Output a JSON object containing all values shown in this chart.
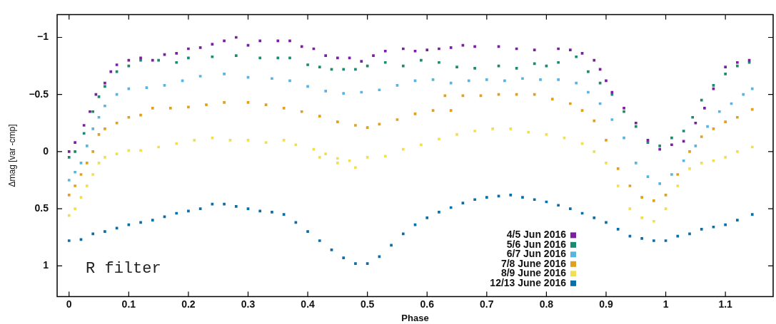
{
  "chart_data": {
    "type": "scatter",
    "xlabel": "Phase",
    "ylabel": "Δmag [var -cmp]",
    "xlim": [
      -0.02,
      1.18
    ],
    "ylim": [
      1.27,
      -1.2
    ],
    "xticks": [
      0,
      0.1,
      0.2,
      0.3,
      0.4,
      0.5,
      0.6,
      0.7,
      0.8,
      0.9,
      1,
      1.1
    ],
    "yticks": [
      -1,
      -0.5,
      0,
      0.5,
      1
    ],
    "marker": "square",
    "legend": "bottom right",
    "annotations": [
      "R filter"
    ],
    "series": [
      {
        "name": "4/5 Jun 2016",
        "color": "#7b1fa2",
        "x": [
          0,
          0.01,
          0.025,
          0.035,
          0.045,
          0.06,
          0.07,
          0.08,
          0.1,
          0.12,
          0.14,
          0.16,
          0.18,
          0.2,
          0.22,
          0.24,
          0.26,
          0.28,
          0.3,
          0.32,
          0.35,
          0.37,
          0.39,
          0.41,
          0.43,
          0.45,
          0.47,
          0.49,
          0.51,
          0.53,
          0.56,
          0.58,
          0.6,
          0.62,
          0.64,
          0.66,
          0.68,
          0.72,
          0.75,
          0.78,
          0.82,
          0.84,
          0.86,
          0.88,
          0.89,
          0.9,
          0.91,
          0.93,
          0.95,
          0.97,
          0.99,
          1.01,
          1.03,
          1.05,
          1.065,
          1.08,
          1.1,
          1.12,
          1.14
        ],
        "values": [
          0,
          -0.08,
          -0.23,
          -0.35,
          -0.5,
          -0.6,
          -0.7,
          -0.76,
          -0.8,
          -0.82,
          -0.8,
          -0.85,
          -0.86,
          -0.9,
          -0.91,
          -0.94,
          -0.97,
          -1,
          -0.93,
          -0.97,
          -0.97,
          -0.97,
          -0.92,
          -0.9,
          -0.84,
          -0.82,
          -0.82,
          -0.79,
          -0.84,
          -0.88,
          -0.9,
          -0.88,
          -0.89,
          -0.9,
          -0.91,
          -0.93,
          -0.92,
          -0.92,
          -0.9,
          -0.89,
          -0.9,
          -0.89,
          -0.86,
          -0.8,
          -0.72,
          -0.62,
          -0.52,
          -0.38,
          -0.25,
          -0.1,
          -0.02,
          -0.06,
          -0.09,
          -0.25,
          -0.38,
          -0.55,
          -0.74,
          -0.78,
          -0.8
        ]
      },
      {
        "name": "5/6 Jun 2016",
        "color": "#1b8a70",
        "x": [
          0,
          0.01,
          0.025,
          0.04,
          0.05,
          0.06,
          0.08,
          0.1,
          0.12,
          0.15,
          0.18,
          0.2,
          0.24,
          0.28,
          0.32,
          0.35,
          0.37,
          0.4,
          0.42,
          0.44,
          0.46,
          0.48,
          0.5,
          0.53,
          0.56,
          0.59,
          0.62,
          0.65,
          0.68,
          0.72,
          0.75,
          0.78,
          0.8,
          0.82,
          0.85,
          0.87,
          0.89,
          0.91,
          0.93,
          0.95,
          0.97,
          0.99,
          1.01,
          1.03,
          1.045,
          1.06,
          1.08,
          1.1,
          1.12,
          1.14
        ],
        "values": [
          0.05,
          0,
          -0.16,
          -0.35,
          -0.48,
          -0.57,
          -0.7,
          -0.75,
          -0.8,
          -0.8,
          -0.78,
          -0.82,
          -0.83,
          -0.84,
          -0.82,
          -0.82,
          -0.82,
          -0.76,
          -0.74,
          -0.72,
          -0.72,
          -0.72,
          -0.75,
          -0.78,
          -0.75,
          -0.8,
          -0.78,
          -0.74,
          -0.73,
          -0.75,
          -0.73,
          -0.77,
          -0.75,
          -0.78,
          -0.83,
          -0.7,
          -0.6,
          -0.5,
          -0.35,
          -0.22,
          -0.08,
          -0.05,
          -0.12,
          -0.18,
          -0.3,
          -0.45,
          -0.58,
          -0.68,
          -0.75,
          -0.78
        ]
      },
      {
        "name": "6/7 Jun 2016",
        "color": "#5ab4e0",
        "x": [
          0,
          0.01,
          0.02,
          0.03,
          0.04,
          0.05,
          0.06,
          0.08,
          0.1,
          0.13,
          0.16,
          0.19,
          0.22,
          0.26,
          0.3,
          0.34,
          0.37,
          0.4,
          0.43,
          0.46,
          0.49,
          0.52,
          0.55,
          0.58,
          0.61,
          0.64,
          0.67,
          0.7,
          0.73,
          0.76,
          0.79,
          0.82,
          0.85,
          0.87,
          0.89,
          0.91,
          0.93,
          0.95,
          0.97,
          0.99,
          1.01,
          1.03,
          1.05,
          1.07,
          1.09,
          1.11,
          1.13,
          1.145
        ],
        "values": [
          0.25,
          0.18,
          0.1,
          -0.05,
          -0.2,
          -0.3,
          -0.4,
          -0.5,
          -0.55,
          -0.56,
          -0.58,
          -0.62,
          -0.66,
          -0.68,
          -0.65,
          -0.64,
          -0.62,
          -0.57,
          -0.53,
          -0.51,
          -0.52,
          -0.54,
          -0.58,
          -0.62,
          -0.63,
          -0.6,
          -0.62,
          -0.63,
          -0.62,
          -0.64,
          -0.63,
          -0.63,
          -0.6,
          -0.52,
          -0.42,
          -0.28,
          -0.12,
          0.1,
          0.22,
          0.28,
          0.2,
          0.08,
          -0.05,
          -0.22,
          -0.35,
          -0.42,
          -0.5,
          -0.55
        ]
      },
      {
        "name": "7/8 June 2016",
        "color": "#e0a020",
        "x": [
          0,
          0.01,
          0.02,
          0.03,
          0.04,
          0.05,
          0.06,
          0.08,
          0.1,
          0.12,
          0.14,
          0.17,
          0.2,
          0.23,
          0.26,
          0.3,
          0.33,
          0.36,
          0.39,
          0.42,
          0.45,
          0.48,
          0.5,
          0.52,
          0.55,
          0.58,
          0.61,
          0.64,
          0.63,
          0.66,
          0.69,
          0.72,
          0.75,
          0.78,
          0.81,
          0.84,
          0.86,
          0.88,
          0.9,
          0.92,
          0.94,
          0.96,
          0.98,
          1,
          1.02,
          1.04,
          1.06,
          1.08,
          1.1,
          1.12,
          1.145
        ],
        "values": [
          0.38,
          0.3,
          0.2,
          0.1,
          0,
          -0.15,
          -0.2,
          -0.25,
          -0.3,
          -0.32,
          -0.38,
          -0.38,
          -0.39,
          -0.41,
          -0.43,
          -0.43,
          -0.41,
          -0.38,
          -0.35,
          -0.31,
          -0.26,
          -0.23,
          -0.21,
          -0.24,
          -0.28,
          -0.33,
          -0.36,
          -0.36,
          -0.49,
          -0.49,
          -0.49,
          -0.5,
          -0.5,
          -0.5,
          -0.46,
          -0.42,
          -0.36,
          -0.27,
          -0.1,
          0.15,
          0.3,
          0.4,
          0.43,
          0.38,
          0.2,
          0,
          -0.13,
          -0.2,
          -0.26,
          -0.3,
          -0.37
        ]
      },
      {
        "name": "8/9 June 2016",
        "color": "#f0e050",
        "x": [
          0,
          0.01,
          0.02,
          0.03,
          0.04,
          0.05,
          0.06,
          0.08,
          0.1,
          0.12,
          0.15,
          0.18,
          0.21,
          0.24,
          0.27,
          0.3,
          0.33,
          0.36,
          0.38,
          0.41,
          0.43,
          0.45,
          0.47,
          0.42,
          0.45,
          0.48,
          0.5,
          0.53,
          0.56,
          0.59,
          0.62,
          0.65,
          0.68,
          0.71,
          0.74,
          0.77,
          0.8,
          0.83,
          0.86,
          0.88,
          0.9,
          0.92,
          0.94,
          0.96,
          0.98,
          1,
          1.02,
          1.04,
          1.06,
          1.08,
          1.1,
          1.12,
          1.145
        ],
        "values": [
          0.56,
          0.5,
          0.4,
          0.3,
          0.2,
          0.1,
          0.05,
          0.02,
          -0.01,
          -0.01,
          -0.04,
          -0.07,
          -0.1,
          -0.12,
          -0.1,
          -0.1,
          -0.08,
          -0.1,
          -0.06,
          -0.02,
          0.02,
          0.06,
          0.08,
          0.05,
          0.1,
          0.14,
          0.05,
          0.04,
          -0.02,
          -0.06,
          -0.11,
          -0.15,
          -0.18,
          -0.2,
          -0.2,
          -0.17,
          -0.15,
          -0.12,
          -0.07,
          0,
          0.1,
          0.3,
          0.5,
          0.58,
          0.61,
          0.5,
          0.3,
          0.15,
          0.1,
          0.08,
          0.05,
          0,
          -0.04
        ]
      },
      {
        "name": "12/13 June 2016",
        "color": "#0a6ea8",
        "x": [
          0,
          0.02,
          0.04,
          0.06,
          0.08,
          0.1,
          0.12,
          0.14,
          0.16,
          0.18,
          0.2,
          0.22,
          0.24,
          0.26,
          0.28,
          0.3,
          0.32,
          0.34,
          0.36,
          0.38,
          0.4,
          0.42,
          0.44,
          0.46,
          0.48,
          0.5,
          0.52,
          0.54,
          0.56,
          0.58,
          0.6,
          0.62,
          0.64,
          0.66,
          0.68,
          0.7,
          0.72,
          0.74,
          0.76,
          0.78,
          0.8,
          0.82,
          0.84,
          0.86,
          0.88,
          0.9,
          0.92,
          0.94,
          0.96,
          0.98,
          1,
          1.02,
          1.04,
          1.06,
          1.08,
          1.1,
          1.12,
          1.145
        ],
        "values": [
          0.78,
          0.77,
          0.72,
          0.7,
          0.67,
          0.64,
          0.62,
          0.6,
          0.57,
          0.54,
          0.52,
          0.5,
          0.46,
          0.46,
          0.48,
          0.5,
          0.52,
          0.53,
          0.55,
          0.62,
          0.7,
          0.78,
          0.86,
          0.93,
          0.98,
          0.98,
          0.92,
          0.82,
          0.72,
          0.64,
          0.58,
          0.53,
          0.49,
          0.45,
          0.42,
          0.4,
          0.39,
          0.38,
          0.4,
          0.42,
          0.44,
          0.47,
          0.5,
          0.54,
          0.58,
          0.62,
          0.68,
          0.74,
          0.76,
          0.78,
          0.78,
          0.74,
          0.72,
          0.68,
          0.66,
          0.64,
          0.6,
          0.55
        ]
      }
    ]
  }
}
